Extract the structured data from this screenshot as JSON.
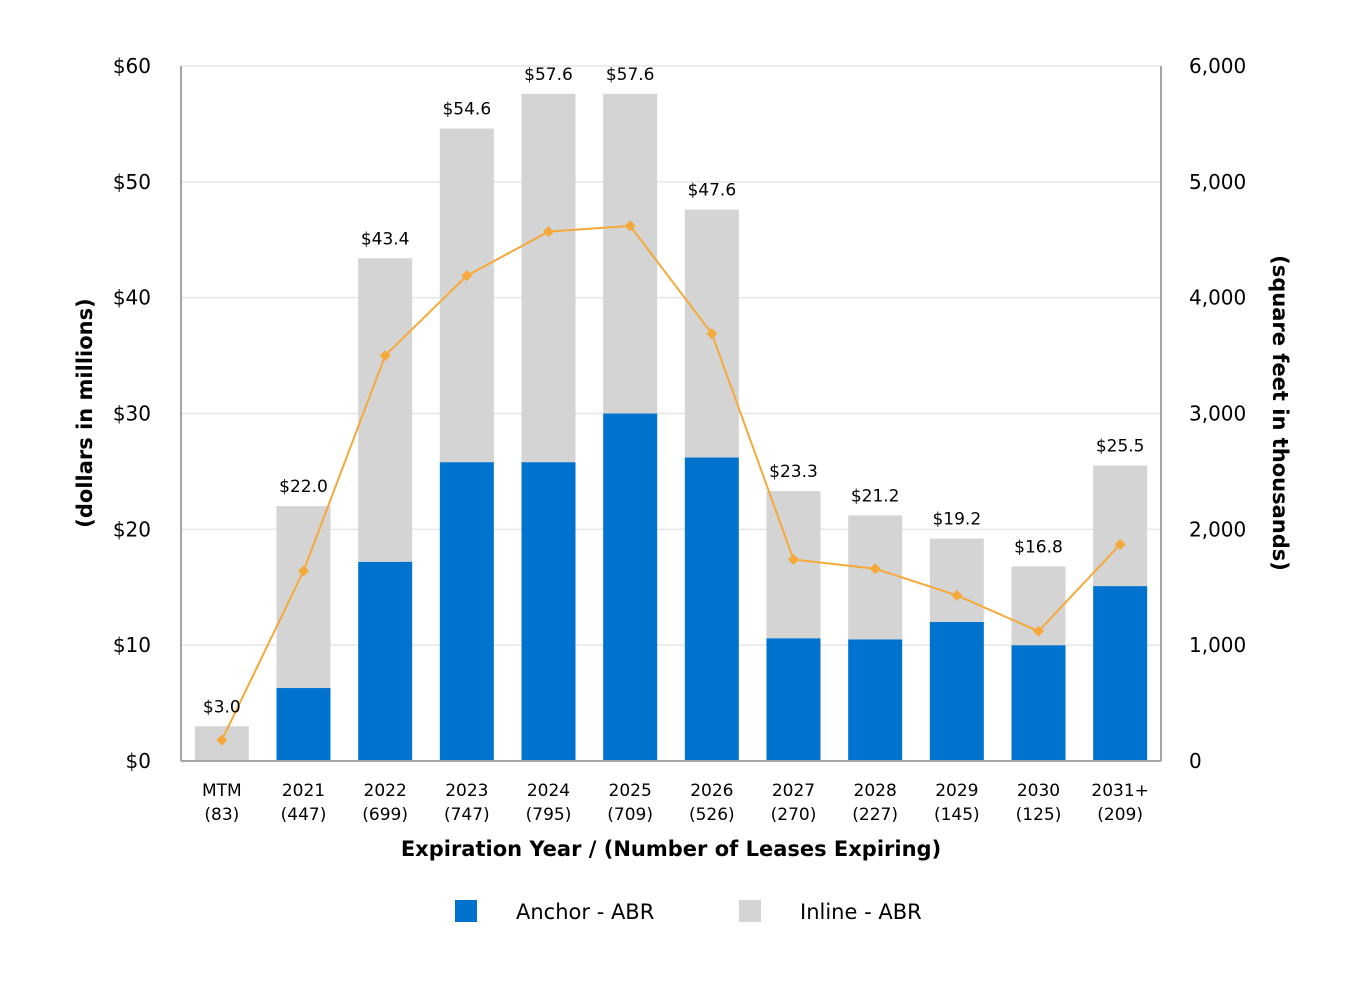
{
  "chart_data": {
    "type": "bar",
    "stacked": true,
    "categories": [
      "MTM",
      "2021",
      "2022",
      "2023",
      "2024",
      "2025",
      "2026",
      "2027",
      "2028",
      "2029",
      "2030",
      "2031+"
    ],
    "lease_counts": [
      "(83)",
      "(447)",
      "(699)",
      "(747)",
      "(795)",
      "(709)",
      "(526)",
      "(270)",
      "(227)",
      "(145)",
      "(125)",
      "(209)"
    ],
    "series": [
      {
        "name": "Anchor - ABR",
        "color": "#0073cf",
        "axis": "left",
        "values": [
          0,
          6.3,
          17.2,
          25.8,
          25.8,
          30.0,
          26.2,
          10.6,
          10.5,
          12.0,
          10.0,
          15.1
        ]
      },
      {
        "name": "Inline - ABR",
        "color": "#d4d4d4",
        "axis": "left",
        "values": [
          3.0,
          15.7,
          26.2,
          28.8,
          31.8,
          27.6,
          21.4,
          12.7,
          10.7,
          7.2,
          6.8,
          10.4
        ]
      },
      {
        "name": "Square feet",
        "type": "line",
        "color": "#f5a93a",
        "axis": "right",
        "values": [
          180,
          1640,
          3500,
          4190,
          4570,
          4620,
          3690,
          1740,
          1660,
          1430,
          1120,
          1870
        ]
      }
    ],
    "total_labels": [
      "$3.0",
      "$22.0",
      "$43.4",
      "$54.6",
      "$57.6",
      "$57.6",
      "$47.6",
      "$23.3",
      "$21.2",
      "$19.2",
      "$16.8",
      "$25.5"
    ],
    "xlabel": "Expiration Year / (Number of Leases Expiring)",
    "ylabel": "(dollars in millions)",
    "y2label": "(square feet in thousands)",
    "ylim": [
      0,
      60
    ],
    "y2lim": [
      0,
      6000
    ],
    "yticks": [
      0,
      10,
      20,
      30,
      40,
      50,
      60
    ],
    "ytick_labels": [
      "$0",
      "$10",
      "$20",
      "$30",
      "$40",
      "$50",
      "$60"
    ],
    "y2ticks": [
      0,
      1000,
      2000,
      3000,
      4000,
      5000,
      6000
    ],
    "y2tick_labels": [
      "0",
      "1,000",
      "2,000",
      "3,000",
      "4,000",
      "5,000",
      "6,000"
    ],
    "grid": true,
    "legend": {
      "position": "bottom",
      "entries": [
        "Anchor - ABR",
        "Inline - ABR"
      ]
    }
  }
}
